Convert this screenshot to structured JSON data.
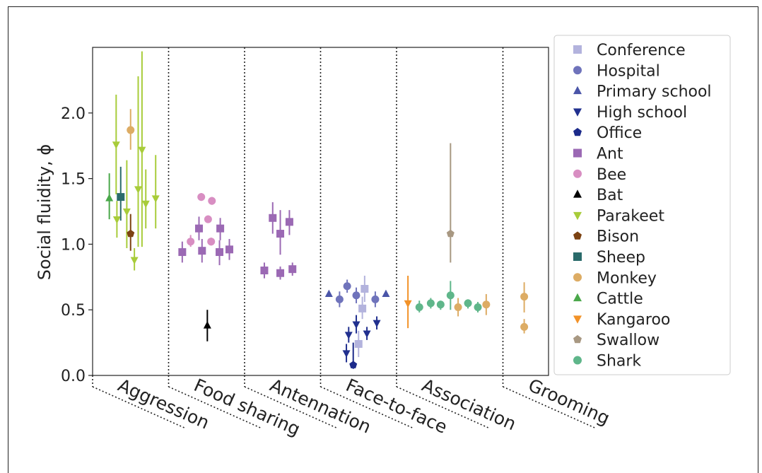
{
  "chart_data": {
    "type": "scatter",
    "ylabel": "Social fluidity, ϕ",
    "ylim": [
      0.0,
      2.5
    ],
    "yticks": [
      0.0,
      0.5,
      1.0,
      1.5,
      2.0
    ],
    "ytick_labels": [
      "0.0",
      "0.5",
      "1.0",
      "1.5",
      "2.0"
    ],
    "xlim": [
      0,
      600
    ],
    "categories": [
      "Aggression",
      "Food sharing",
      "Antennation",
      "Face-to-face",
      "Association",
      "Grooming"
    ],
    "category_bounds": [
      0,
      100,
      200,
      300,
      400,
      540,
      600
    ],
    "legend_position": "right",
    "series": [
      {
        "name": "Conference",
        "color": "#b3b3dd",
        "marker": "square",
        "points": [
          {
            "x": 358,
            "y": 0.66,
            "lo": 0.56,
            "hi": 0.76
          },
          {
            "x": 355,
            "y": 0.51,
            "lo": 0.43,
            "hi": 0.6
          },
          {
            "x": 350,
            "y": 0.24,
            "lo": 0.14,
            "hi": 0.34
          }
        ]
      },
      {
        "name": "Hospital",
        "color": "#6f73bb",
        "marker": "circle",
        "points": [
          {
            "x": 325,
            "y": 0.58,
            "lo": 0.52,
            "hi": 0.64
          },
          {
            "x": 335,
            "y": 0.68,
            "lo": 0.63,
            "hi": 0.73
          },
          {
            "x": 347,
            "y": 0.61,
            "lo": 0.55,
            "hi": 0.67
          },
          {
            "x": 372,
            "y": 0.58,
            "lo": 0.52,
            "hi": 0.64
          }
        ]
      },
      {
        "name": "Primary school",
        "color": "#4a55a8",
        "marker": "triangle-up",
        "points": [
          {
            "x": 311,
            "y": 0.62,
            "lo": 0.62,
            "hi": 0.62
          },
          {
            "x": 386,
            "y": 0.62,
            "lo": 0.62,
            "hi": 0.62
          }
        ]
      },
      {
        "name": "High school",
        "color": "#21308f",
        "marker": "triangle-down",
        "points": [
          {
            "x": 337,
            "y": 0.31,
            "lo": 0.25,
            "hi": 0.37
          },
          {
            "x": 334,
            "y": 0.17,
            "lo": 0.1,
            "hi": 0.24
          },
          {
            "x": 347,
            "y": 0.39,
            "lo": 0.32,
            "hi": 0.46
          },
          {
            "x": 361,
            "y": 0.32,
            "lo": 0.27,
            "hi": 0.37
          },
          {
            "x": 374,
            "y": 0.4,
            "lo": 0.35,
            "hi": 0.45
          }
        ]
      },
      {
        "name": "Office",
        "color": "#1c2a8a",
        "marker": "pentagon",
        "points": [
          {
            "x": 343,
            "y": 0.08,
            "lo": 0.05,
            "hi": 0.25
          }
        ]
      },
      {
        "name": "Ant",
        "color": "#9b69b4",
        "marker": "square",
        "points": [
          {
            "x": 118,
            "y": 0.94,
            "lo": 0.86,
            "hi": 1.02
          },
          {
            "x": 140,
            "y": 1.12,
            "lo": 1.03,
            "hi": 1.21
          },
          {
            "x": 144,
            "y": 0.95,
            "lo": 0.86,
            "hi": 1.04
          },
          {
            "x": 167,
            "y": 0.94,
            "lo": 0.84,
            "hi": 1.03
          },
          {
            "x": 168,
            "y": 1.12,
            "lo": 1.03,
            "hi": 1.2
          },
          {
            "x": 180,
            "y": 0.96,
            "lo": 0.88,
            "hi": 1.04
          },
          {
            "x": 226,
            "y": 0.8,
            "lo": 0.74,
            "hi": 0.86
          },
          {
            "x": 237,
            "y": 1.2,
            "lo": 1.08,
            "hi": 1.32
          },
          {
            "x": 247,
            "y": 1.08,
            "lo": 0.92,
            "hi": 1.26
          },
          {
            "x": 247,
            "y": 0.78,
            "lo": 0.73,
            "hi": 0.83
          },
          {
            "x": 259,
            "y": 1.17,
            "lo": 1.07,
            "hi": 1.26
          },
          {
            "x": 263,
            "y": 0.81,
            "lo": 0.76,
            "hi": 0.86
          }
        ]
      },
      {
        "name": "Bee",
        "color": "#d88ec2",
        "marker": "circle",
        "points": [
          {
            "x": 129,
            "y": 1.02,
            "lo": 0.98,
            "hi": 1.07
          },
          {
            "x": 143,
            "y": 1.36,
            "lo": 1.33,
            "hi": 1.39
          },
          {
            "x": 152,
            "y": 1.19,
            "lo": 1.17,
            "hi": 1.22
          },
          {
            "x": 156,
            "y": 1.02,
            "lo": 0.99,
            "hi": 1.05
          },
          {
            "x": 157,
            "y": 1.33,
            "lo": 1.3,
            "hi": 1.36
          }
        ]
      },
      {
        "name": "Bat",
        "color": "#000000",
        "marker": "triangle-up",
        "points": [
          {
            "x": 151,
            "y": 0.38,
            "lo": 0.26,
            "hi": 0.5
          }
        ]
      },
      {
        "name": "Parakeet",
        "color": "#a8cc3a",
        "marker": "triangle-down",
        "points": [
          {
            "x": 31,
            "y": 1.76,
            "lo": 1.38,
            "hi": 2.14
          },
          {
            "x": 32,
            "y": 1.19,
            "lo": 1.05,
            "hi": 1.33
          },
          {
            "x": 45,
            "y": 1.25,
            "lo": 0.97,
            "hi": 1.64
          },
          {
            "x": 55,
            "y": 0.88,
            "lo": 0.8,
            "hi": 0.97
          },
          {
            "x": 60,
            "y": 1.42,
            "lo": 0.98,
            "hi": 2.28
          },
          {
            "x": 65,
            "y": 1.72,
            "lo": 0.98,
            "hi": 2.47
          },
          {
            "x": 70,
            "y": 1.31,
            "lo": 1.12,
            "hi": 1.57
          },
          {
            "x": 83,
            "y": 1.35,
            "lo": 1.12,
            "hi": 1.68
          }
        ]
      },
      {
        "name": "Bison",
        "color": "#7c4212",
        "marker": "pentagon",
        "points": [
          {
            "x": 50,
            "y": 1.08,
            "lo": 0.95,
            "hi": 1.23
          }
        ]
      },
      {
        "name": "Sheep",
        "color": "#2a6b6b",
        "marker": "square",
        "points": [
          {
            "x": 37,
            "y": 1.36,
            "lo": 1.18,
            "hi": 1.59
          }
        ]
      },
      {
        "name": "Monkey",
        "color": "#ddac64",
        "marker": "circle",
        "points": [
          {
            "x": 50,
            "y": 1.87,
            "lo": 1.72,
            "hi": 2.03
          },
          {
            "x": 481,
            "y": 0.52,
            "lo": 0.45,
            "hi": 0.59
          },
          {
            "x": 518,
            "y": 0.54,
            "lo": 0.46,
            "hi": 0.62
          },
          {
            "x": 568,
            "y": 0.6,
            "lo": 0.48,
            "hi": 0.71
          },
          {
            "x": 568,
            "y": 0.37,
            "lo": 0.32,
            "hi": 0.43
          }
        ]
      },
      {
        "name": "Cattle",
        "color": "#4aa84a",
        "marker": "triangle-up",
        "points": [
          {
            "x": 22,
            "y": 1.35,
            "lo": 1.19,
            "hi": 1.54
          }
        ]
      },
      {
        "name": "Kangaroo",
        "color": "#f29228",
        "marker": "triangle-down",
        "points": [
          {
            "x": 415,
            "y": 0.55,
            "lo": 0.36,
            "hi": 0.76
          }
        ]
      },
      {
        "name": "Swallow",
        "color": "#a89882",
        "marker": "pentagon",
        "points": [
          {
            "x": 471,
            "y": 1.08,
            "lo": 0.86,
            "hi": 1.77
          }
        ]
      },
      {
        "name": "Shark",
        "color": "#5fb68a",
        "marker": "circle",
        "points": [
          {
            "x": 430,
            "y": 0.52,
            "lo": 0.48,
            "hi": 0.57
          },
          {
            "x": 445,
            "y": 0.55,
            "lo": 0.51,
            "hi": 0.59
          },
          {
            "x": 458,
            "y": 0.54,
            "lo": 0.5,
            "hi": 0.57
          },
          {
            "x": 471,
            "y": 0.61,
            "lo": 0.5,
            "hi": 0.72
          },
          {
            "x": 494,
            "y": 0.55,
            "lo": 0.51,
            "hi": 0.58
          },
          {
            "x": 507,
            "y": 0.52,
            "lo": 0.48,
            "hi": 0.56
          }
        ]
      }
    ]
  }
}
